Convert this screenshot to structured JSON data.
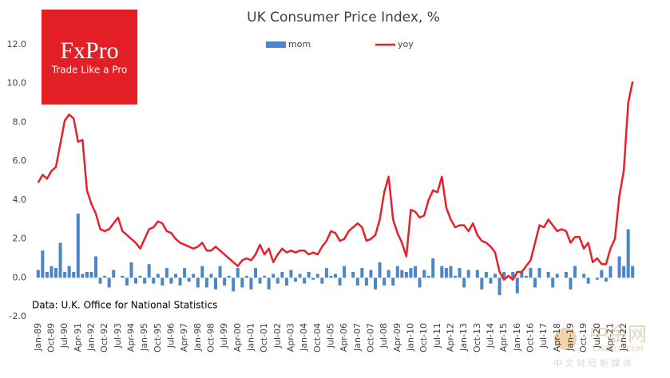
{
  "chart_data": {
    "type": "bar-line",
    "title": "UK Consumer  Price Index, %",
    "source": "Data: U.K. Office for National Statistics",
    "logo": {
      "name": "FxPro",
      "tagline": "Trade Like a Pro"
    },
    "watermark": {
      "name": "中金网",
      "site": "CNGOLD.COM",
      "slogan": "中 文 财 经 新 媒 体"
    },
    "categories": [
      "Jan-89",
      null,
      null,
      "Oct-89",
      null,
      null,
      "Jul-90",
      null,
      null,
      "Apr-91",
      null,
      null,
      "Jan-92",
      null,
      null,
      "Oct-92",
      null,
      null,
      "Jul-93",
      null,
      null,
      "Apr-94",
      null,
      null,
      "Jan-95",
      null,
      null,
      "Oct-95",
      null,
      null,
      "Jul-96",
      null,
      null,
      "Apr-97",
      null,
      null,
      "Jan-98",
      null,
      null,
      "Oct-98",
      null,
      null,
      "Jul-99",
      null,
      null,
      "Apr-00",
      null,
      null,
      "Jan-01",
      null,
      null,
      "Oct-01",
      null,
      null,
      "Jul-02",
      null,
      null,
      "Apr-03",
      null,
      null,
      "Jan-04",
      null,
      null,
      "Oct-04",
      null,
      null,
      "Jul-05",
      null,
      null,
      "Apr-06",
      null,
      null,
      "Jan-07",
      null,
      null,
      "Oct-07",
      null,
      null,
      "Jul-08",
      null,
      null,
      "Apr-09",
      null,
      null,
      "Jan-10",
      null,
      null,
      "Oct-10",
      null,
      null,
      "Jul-11",
      null,
      null,
      "Apr-12",
      null,
      null,
      "Jan-13",
      null,
      null,
      "Oct-13",
      null,
      null,
      "Jul-14",
      null,
      null,
      "Apr-15",
      null,
      null,
      "Jan-16",
      null,
      null,
      "Oct-16",
      null,
      null,
      "Jul-17",
      null,
      null,
      "Apr-18",
      null,
      null,
      "Jan-19",
      null,
      null,
      "Oct-19",
      null,
      null,
      "Jul-20",
      null,
      null,
      "Apr-21",
      null,
      null,
      "Jan-22",
      null,
      null
    ],
    "series": [
      {
        "name": "mom",
        "type": "bar",
        "color": "#4a86c8",
        "values": [
          0.4,
          1.4,
          0.3,
          0.6,
          0.5,
          1.8,
          0.3,
          0.6,
          0.3,
          3.3,
          0.2,
          0.3,
          0.3,
          1.1,
          -0.3,
          0.1,
          -0.5,
          0.4,
          0.0,
          0.1,
          -0.4,
          0.8,
          -0.3,
          0.1,
          -0.3,
          0.7,
          -0.3,
          0.2,
          -0.4,
          0.5,
          -0.3,
          0.2,
          -0.4,
          0.5,
          -0.2,
          0.2,
          -0.5,
          0.6,
          -0.5,
          0.2,
          -0.6,
          0.6,
          -0.4,
          0.1,
          -0.7,
          0.5,
          -0.5,
          0.1,
          -0.6,
          0.5,
          -0.3,
          0.1,
          -0.6,
          0.2,
          -0.3,
          0.3,
          -0.4,
          0.4,
          -0.2,
          0.2,
          -0.3,
          0.3,
          -0.1,
          0.2,
          -0.3,
          0.5,
          0.1,
          0.2,
          -0.4,
          0.6,
          0.0,
          0.3,
          -0.4,
          0.5,
          -0.4,
          0.4,
          -0.6,
          0.8,
          -0.4,
          0.4,
          -0.4,
          0.6,
          0.4,
          0.3,
          0.5,
          0.6,
          -0.5,
          0.4,
          0.1,
          1.0,
          0.0,
          0.6,
          0.5,
          0.6,
          0.1,
          0.5,
          -0.5,
          0.4,
          0.0,
          0.4,
          -0.6,
          0.3,
          -0.3,
          0.2,
          -0.9,
          0.3,
          0.0,
          0.3,
          -0.8,
          0.3,
          0.1,
          0.5,
          -0.5,
          0.5,
          0.0,
          0.3,
          -0.5,
          0.2,
          0.0,
          0.3,
          -0.6,
          0.6,
          0.0,
          0.2,
          -0.3,
          0.0,
          -0.1,
          0.4,
          -0.2,
          0.6,
          0.0,
          1.1,
          0.6,
          2.5,
          0.6
        ]
      },
      {
        "name": "yoy",
        "type": "line",
        "color": "#e8202a",
        "values": [
          4.9,
          5.3,
          5.1,
          5.5,
          5.7,
          6.9,
          8.1,
          8.4,
          8.2,
          7.0,
          7.1,
          4.5,
          3.8,
          3.3,
          2.5,
          2.4,
          2.5,
          2.8,
          3.1,
          2.4,
          2.2,
          2.0,
          1.8,
          1.5,
          2.0,
          2.5,
          2.6,
          2.9,
          2.8,
          2.4,
          2.3,
          2.0,
          1.8,
          1.7,
          1.6,
          1.5,
          1.6,
          1.8,
          1.4,
          1.4,
          1.6,
          1.4,
          1.2,
          1.0,
          0.8,
          0.6,
          0.9,
          1.0,
          0.9,
          1.2,
          1.7,
          1.2,
          1.5,
          0.8,
          1.2,
          1.5,
          1.3,
          1.4,
          1.3,
          1.4,
          1.4,
          1.2,
          1.3,
          1.2,
          1.6,
          1.9,
          2.4,
          2.3,
          1.9,
          2.0,
          2.4,
          2.6,
          2.8,
          2.6,
          1.9,
          2.0,
          2.2,
          3.0,
          4.4,
          5.2,
          3.0,
          2.3,
          1.8,
          1.1,
          3.5,
          3.4,
          3.1,
          3.2,
          4.0,
          4.5,
          4.4,
          5.2,
          3.6,
          3.0,
          2.6,
          2.7,
          2.7,
          2.4,
          2.8,
          2.2,
          1.9,
          1.8,
          1.6,
          1.3,
          0.3,
          -0.1,
          0.1,
          -0.1,
          0.3,
          0.3,
          0.6,
          0.9,
          1.8,
          2.7,
          2.6,
          3.0,
          2.7,
          2.4,
          2.5,
          2.4,
          1.8,
          2.1,
          2.1,
          1.5,
          1.8,
          0.8,
          1.0,
          0.7,
          0.7,
          1.5,
          2.0,
          4.2,
          5.5,
          9.0,
          10.1
        ]
      }
    ],
    "ylim": [
      -2,
      12
    ],
    "yticks": [
      {
        "value": -2,
        "label": "-2.0"
      },
      {
        "value": 0,
        "label": "0.0"
      },
      {
        "value": 2,
        "label": "2.0"
      },
      {
        "value": 4,
        "label": "4.0"
      },
      {
        "value": 6,
        "label": "6.0"
      },
      {
        "value": 8,
        "label": "8.0"
      },
      {
        "value": 10,
        "label": "10.0"
      },
      {
        "value": 12,
        "label": "12.0"
      }
    ],
    "grid": false
  }
}
